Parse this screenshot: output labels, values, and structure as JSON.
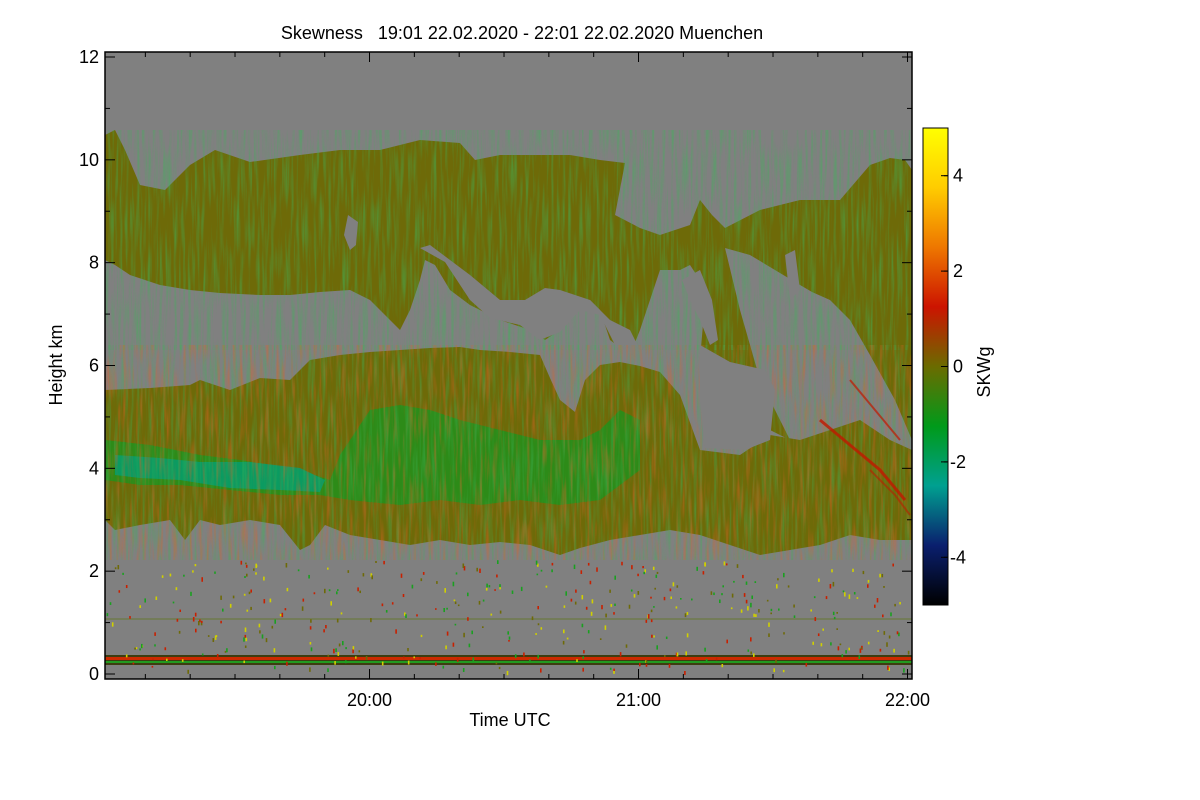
{
  "chart_data": {
    "type": "heatmap",
    "title": "Skewness   19:01 22.02.2020 - 22:01 22.02.2020 Muenchen",
    "xlabel": "Time UTC",
    "ylabel": "Height km",
    "x_range": [
      "19:01",
      "22:01"
    ],
    "x_ticks": [
      "20:00",
      "21:00",
      "22:00"
    ],
    "y_range": [
      0,
      12
    ],
    "y_ticks": [
      "0",
      "2",
      "4",
      "6",
      "8",
      "10",
      "12"
    ],
    "colorbar": {
      "label": "SKWg",
      "range": [
        -5,
        5
      ],
      "ticks": [
        "-4",
        "-2",
        "0",
        "2",
        "4"
      ],
      "colors": [
        "#000000",
        "#0a1f6e",
        "#00a090",
        "#009a1a",
        "#6b6b00",
        "#cc1400",
        "#ee7700",
        "#ffcc00",
        "#ffff00"
      ]
    },
    "no_data_color": "#808080",
    "layers": [
      {
        "name": "upper-cloud-layer",
        "height_km": [
          7.5,
          10.3
        ],
        "dominant_value": 0.3
      },
      {
        "name": "lower-cloud-layer",
        "height_km": [
          2.5,
          6.3
        ],
        "dominant_value": -0.5
      },
      {
        "name": "surface-layer",
        "height_km": [
          0.2,
          0.4
        ],
        "dominant_value": 1.0
      }
    ]
  }
}
